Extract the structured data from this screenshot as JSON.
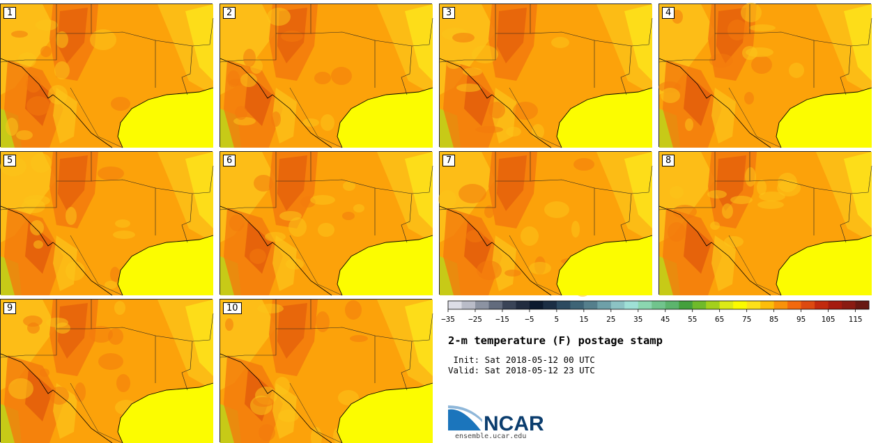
{
  "panels": [
    {
      "label": "1"
    },
    {
      "label": "2"
    },
    {
      "label": "3"
    },
    {
      "label": "4"
    },
    {
      "label": "5"
    },
    {
      "label": "6"
    },
    {
      "label": "7"
    },
    {
      "label": "8"
    },
    {
      "label": "9"
    },
    {
      "label": "10"
    }
  ],
  "colorbar": {
    "colors": [
      "#dcdde6",
      "#b9bcc8",
      "#8c93a2",
      "#626b7d",
      "#3a4457",
      "#222c3f",
      "#0c1a2e",
      "#1b2e44",
      "#2c4a60",
      "#3e6476",
      "#557f8c",
      "#6ea0a8",
      "#8cc3c4",
      "#9fe0d6",
      "#8bd6b0",
      "#71c48d",
      "#5cb46d",
      "#44a03d",
      "#6fba2a",
      "#a3d01c",
      "#dcea17",
      "#fbfb00",
      "#fce01a",
      "#fcbd0a",
      "#f9920b",
      "#f2690e",
      "#dd4a10",
      "#c22a0e",
      "#a51b0f",
      "#8a1b12",
      "#681812"
    ],
    "tick_labels": [
      "−35",
      "−25",
      "−15",
      "−5",
      "5",
      "15",
      "25",
      "35",
      "45",
      "55",
      "65",
      "75",
      "85",
      "95",
      "105",
      "115"
    ]
  },
  "title": "2-m temperature (F) postage stamp",
  "init_line": " Init: Sat 2018-05-12 00 UTC",
  "valid_line": "Valid: Sat 2018-05-12 23 UTC",
  "logo": {
    "text": "NCAR",
    "url": "ensemble.ucar.edu"
  },
  "map_colors": {
    "gulf": "#fcfc00",
    "base": "#fca20a",
    "hot": "#f37a0d",
    "hotter": "#e0560c",
    "cool": "#fcc41a",
    "mild": "#fce51a",
    "green": "#b9d51a"
  }
}
